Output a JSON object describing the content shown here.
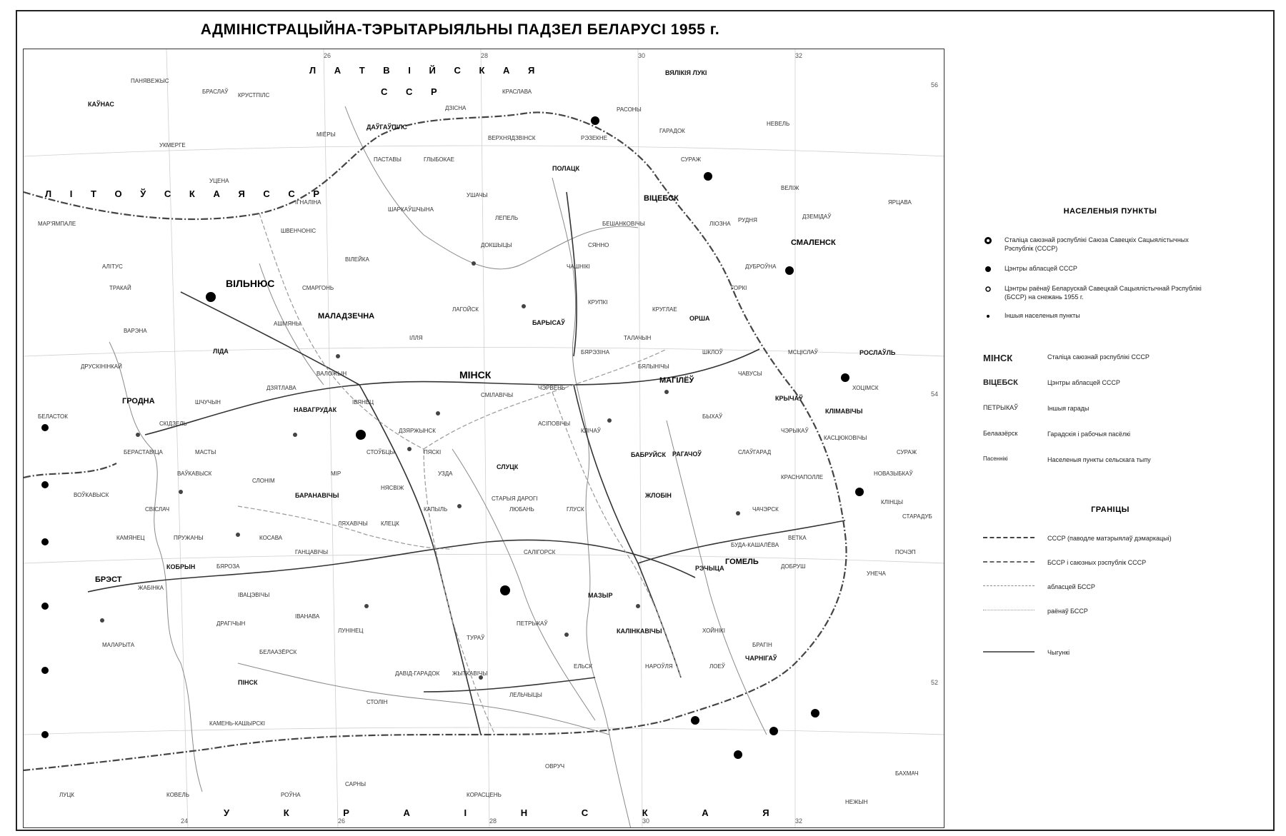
{
  "title": "АДМІНІСТРАЦЫЙНА-ТЭРЫТАРЫЯЛЬНЫ ПАДЗЕЛ БЕЛАРУСІ 1955 г.",
  "neighbours": {
    "latvia": "Л А Т В І Й С К А Я",
    "latvia2": "С С Р",
    "lithuania": "Л І Т О Ў С К А Я   С С Р",
    "ukraine": "У К Р А І Н С К А Я"
  },
  "cities": {
    "minsk": "МІНСК",
    "vilnius": "ВІЛЬНЮС",
    "viciebsk": "ВІЦЕБСК",
    "mahilou": "МАГІЛЁЎ",
    "homiel": "ГОМЕЛЬ",
    "hrodna": "ГРОДНА",
    "brest": "БРЭСТ",
    "maladzechna": "МАЛАДЗЕЧНА",
    "smalensk": "СМАЛЕНСК",
    "vialikija_luki": "ВЯЛІКІЯ ЛУКІ",
    "charnihau": "ЧАРНІГАЎ",
    "babrujsk": "БАБРУЙСК",
    "polack": "ПОЛАЦК",
    "orsha": "ОРША",
    "barysau": "БАРЫСАЎ",
    "pinsk": "ПІНСК",
    "baranavichy": "БАРАНАВІЧЫ",
    "slutsk": "СЛУЦК",
    "mazyr": "МАЗЫР",
    "lida": "ЛІДА",
    "navahrudak": "НАВАГРУДАК",
    "kobryn": "КОБРЫН",
    "roslaul": "РОСЛАЎЛЬ",
    "kaunas": "КАЎНАС",
    "daugavpils": "ДАЎГАЎПІЛС",
    "rechyca": "РЭЧЫЦА",
    "kalinkavichy": "КАЛІНКАВІЧЫ",
    "zhlobin": "ЖЛОБІН",
    "rahachou": "РАГАЧОЎ",
    "krychau": "КРЫЧАЎ",
    "klimavichy": "КЛІМАВІЧЫ",
    "dzisna": "ДЗІСНА",
    "hlybokae": "ГЛЫБОКАЕ",
    "pastavy": "ПАСТАВЫ",
    "vialejka": "ВІЛЕЙКА",
    "salihorsk": "САЛІГОРСК",
    "luninets": "ЛУНІНЕЦ",
    "kovel": "КОВЕЛЬ",
    "sarny": "САРНЫ",
    "novazybkau": "НОВАЗЫБКАЎ",
    "starodub": "СТАРАДУБ",
    "surazh": "СУРАЖ",
    "horki": "ГОРКІ",
    "shklou": "ШКЛОЎ",
    "lepel": "ЛЕПЕЛЬ",
    "sianno": "СЯННО",
    "haradok": "ГАРАДОК",
    "nevel": "НЕВЕЛЬ",
    "velizh": "ВЕЛІЖ",
    "rudnia": "РУДНЯ",
    "dubrouna": "ДУБРОЎНА",
    "dzerzhynsk": "ДЗЯРЖЫНСК",
    "stoubtsy": "СТОЎБЦЫ",
    "mir": "МІР",
    "ivacevichy": "ІВАЦЭВІЧЫ",
    "pruzhany": "ПРУЖАНЫ",
    "vaukavysk": "ВАЎКАВЫСК",
    "slonim": "СЛОНІМ",
    "shchuchyn": "ШЧУЧЫН",
    "smarhon": "СМАРГОНЬ",
    "ashmiany": "АШМЯНЫ",
    "zhytkavichy": "ЖЫТКАВІЧЫ",
    "petrykau": "ПЕТРЫКАЎ",
    "stolin": "СТОЛІН",
    "drahichyn": "ДРАГІЧЫН",
    "kamen_kashyrski": "КАМЕНЬ-КАШЫРСКІ",
    "bielaazersk": "БЕЛААЗЁРСК",
    "loeu": "ЛОЕЎ",
    "braslau": "БРАСЛАЎ",
    "miory": "МІЁРЫ",
    "ushachy": "УШАЧЫ",
    "chashniki": "ЧАШНІКІ",
    "talachyn": "ТАЛАЧЫН",
    "klichau": "КЛІЧАЎ",
    "asipovichy": "АСІПОВІЧЫ",
    "hlusk": "ГЛУСК",
    "liuban": "ЛЮБАНЬ",
    "staryja_darohi": "СТАРЫЯ ДАРОГІ",
    "kapyl": "КАПЫЛЬ",
    "niasvizh": "НЯСВІЖ",
    "uzda": "УЗДА",
    "lahojsk": "ЛАГОЙСК",
    "valozhyn": "ВАЛОЖЫН",
    "ivianets": "ІВЯНЕЦ",
    "dzjatlava": "ДЗЯТЛАВА",
    "masty": "МАСТЫ",
    "skidal": "СКІДЗЕЛЬ",
    "berastavica": "БЕРАСТАВІЦА",
    "svislach": "СВІСЛАЧ",
    "kamianets": "КАМЯНЕЦ",
    "zhabinka": "ЖАБІНКА",
    "malaryta": "МАЛАРЫТА",
    "biaroza": "БЯРОЗА",
    "hancavichy": "ГАНЦАВІЧЫ",
    "liachavichy": "ЛЯХАВІЧЫ",
    "kletsk": "КЛЕЦК",
    "chervien": "ЧЭРВЕНЬ",
    "smilavichy": "СМІЛАВІЧЫ",
    "berazino": "БЯРЭЗІНА",
    "krupki": "КРУПКІ",
    "kruhlae": "КРУГЛАЕ",
    "bialynichy": "БЯЛЫНІЧЫ",
    "bykhau": "БЫХАЎ",
    "slauharad": "СЛАЎГАРАД",
    "chavusy": "ЧАВУСЫ",
    "mscislau": "МСЦІСЛАЎ",
    "cherykau": "ЧЭРЫКАЎ",
    "kascjukovichy": "КАСЦЮКОВІЧЫ",
    "khocimsk": "ХОЦІМСК",
    "krasnapolle": "КРАСНАПОЛЛЕ",
    "chachersk": "ЧАЧЭРСК",
    "vetka": "ВЕТКА",
    "dobrush": "ДОБРУШ",
    "buda_kashaliova": "БУДА-КАШАЛЁВА",
    "brahin": "БРАГІН",
    "khojniki": "ХОЙНІКІ",
    "naroulia": "НАРОЎЛЯ",
    "jelsk": "ЕЛЬСК",
    "lelchytsy": "ЛЕЛЬЧЫЦЫ",
    "turau": "ТУРАЎ",
    "david_haradok": "ДАВІД-ГАРАДОК",
    "ivanava": "ІВАНАВА",
    "kosava": "КОСАВА",
    "ilia": "ІЛЛЯ",
    "dokshytsy": "ДОКШЫЦЫ",
    "rasony": "РАСОНЫ",
    "sharkauchyna": "ШАРКАЎШЧЫНА",
    "verkhniadzvinsk": "ВЕРХНЯДЗВІНСК",
    "liozna": "ЛІОЗНА",
    "senno2": "БЕШАНКОВІЧЫ",
    "vitsebsk_region": "СУРАЖ",
    "tver": "ДЗЕМІДАЎ",
    "jartsava": "ЯРЦАВА",
    "pachep": "ПОЧЭП",
    "klincy": "КЛІНЦЫ",
    "unecha": "УНЕЧА",
    "bakhmach": "БАХМАЧ",
    "nezhyn": "НЕЖЫН",
    "ovruch": "ОВРУЧ",
    "korosten": "КОРАСЦЕНЬ",
    "volkovysk2": "ВОЎКАВЫСК",
    "belastok": "БЕЛАСТОК",
    "marjampale": "МАР'ЯМПАЛЕ",
    "alitus": "АЛІТУС",
    "ukmerge": "УКМЕРГЕ",
    "panevezhys": "ПАНЯВЕЖЫС",
    "rezekne": "РЭЗЕКНЕ",
    "krustpils": "КРУСТПІЛС",
    "kraslava": "КРАСЛАВА",
    "utena": "УЦЕНА",
    "ignalina": "ІГНАЛІНА",
    "shvenchionys": "ШВЕНЧОНІС",
    "trakai": "ТРАКАЙ",
    "varena": "ВАРЭНА",
    "druskininkai": "ДРУСКІНІНКАЙ",
    "lutsk": "ЛУЦК",
    "rovna": "РОЎНА",
    "piaski": "ПЯСКІ"
  },
  "grid": {
    "top": [
      "26",
      "28",
      "30",
      "32"
    ],
    "right": [
      "56",
      "54",
      "52"
    ],
    "bottom": [
      "24",
      "26",
      "28",
      "30",
      "32"
    ]
  },
  "legend": {
    "settlements_heading": "НАСЕЛЕНЫЯ ПУНКТЫ",
    "settlements": [
      "Сталіца саюзнай рэспублікі Саюза Савецкіх Сацыялістычных Рэспублік (СССР)",
      "Цэнтры абласцей СССР",
      "Цэнтры раёнаў Беларускай Савецкай Сацыялістычнай Рэспублікі (БССР) на снежань 1955 г.",
      "Іншыя населеныя пункты"
    ],
    "types": [
      {
        "name": "МІНСК",
        "desc": "Сталіца саюзнай рэспублікі СССР"
      },
      {
        "name": "ВІЦЕБСК",
        "desc": "Цэнтры абласцей СССР"
      },
      {
        "name": "ПЕТРЫКАЎ",
        "desc": "Іншыя гарады"
      },
      {
        "name": "Белаазёрск",
        "desc": "Гарадскія і рабочыя пасёлкі"
      },
      {
        "name": "Пасеннікі",
        "desc": "Населеныя пункты сельскага тыпу"
      }
    ],
    "borders_heading": "ГРАНІЦЫ",
    "borders": [
      "СССР (паводле матэрыялаў дэмаркацыі)",
      "БССР і саюзных рэспублік СССР",
      "абласцей БССР",
      "раёнаў БССР",
      "Чыгункі"
    ]
  },
  "colors": {
    "ink": "#000000",
    "paper": "#ffffff",
    "line": "#7a7a7a",
    "border": "#222222"
  }
}
